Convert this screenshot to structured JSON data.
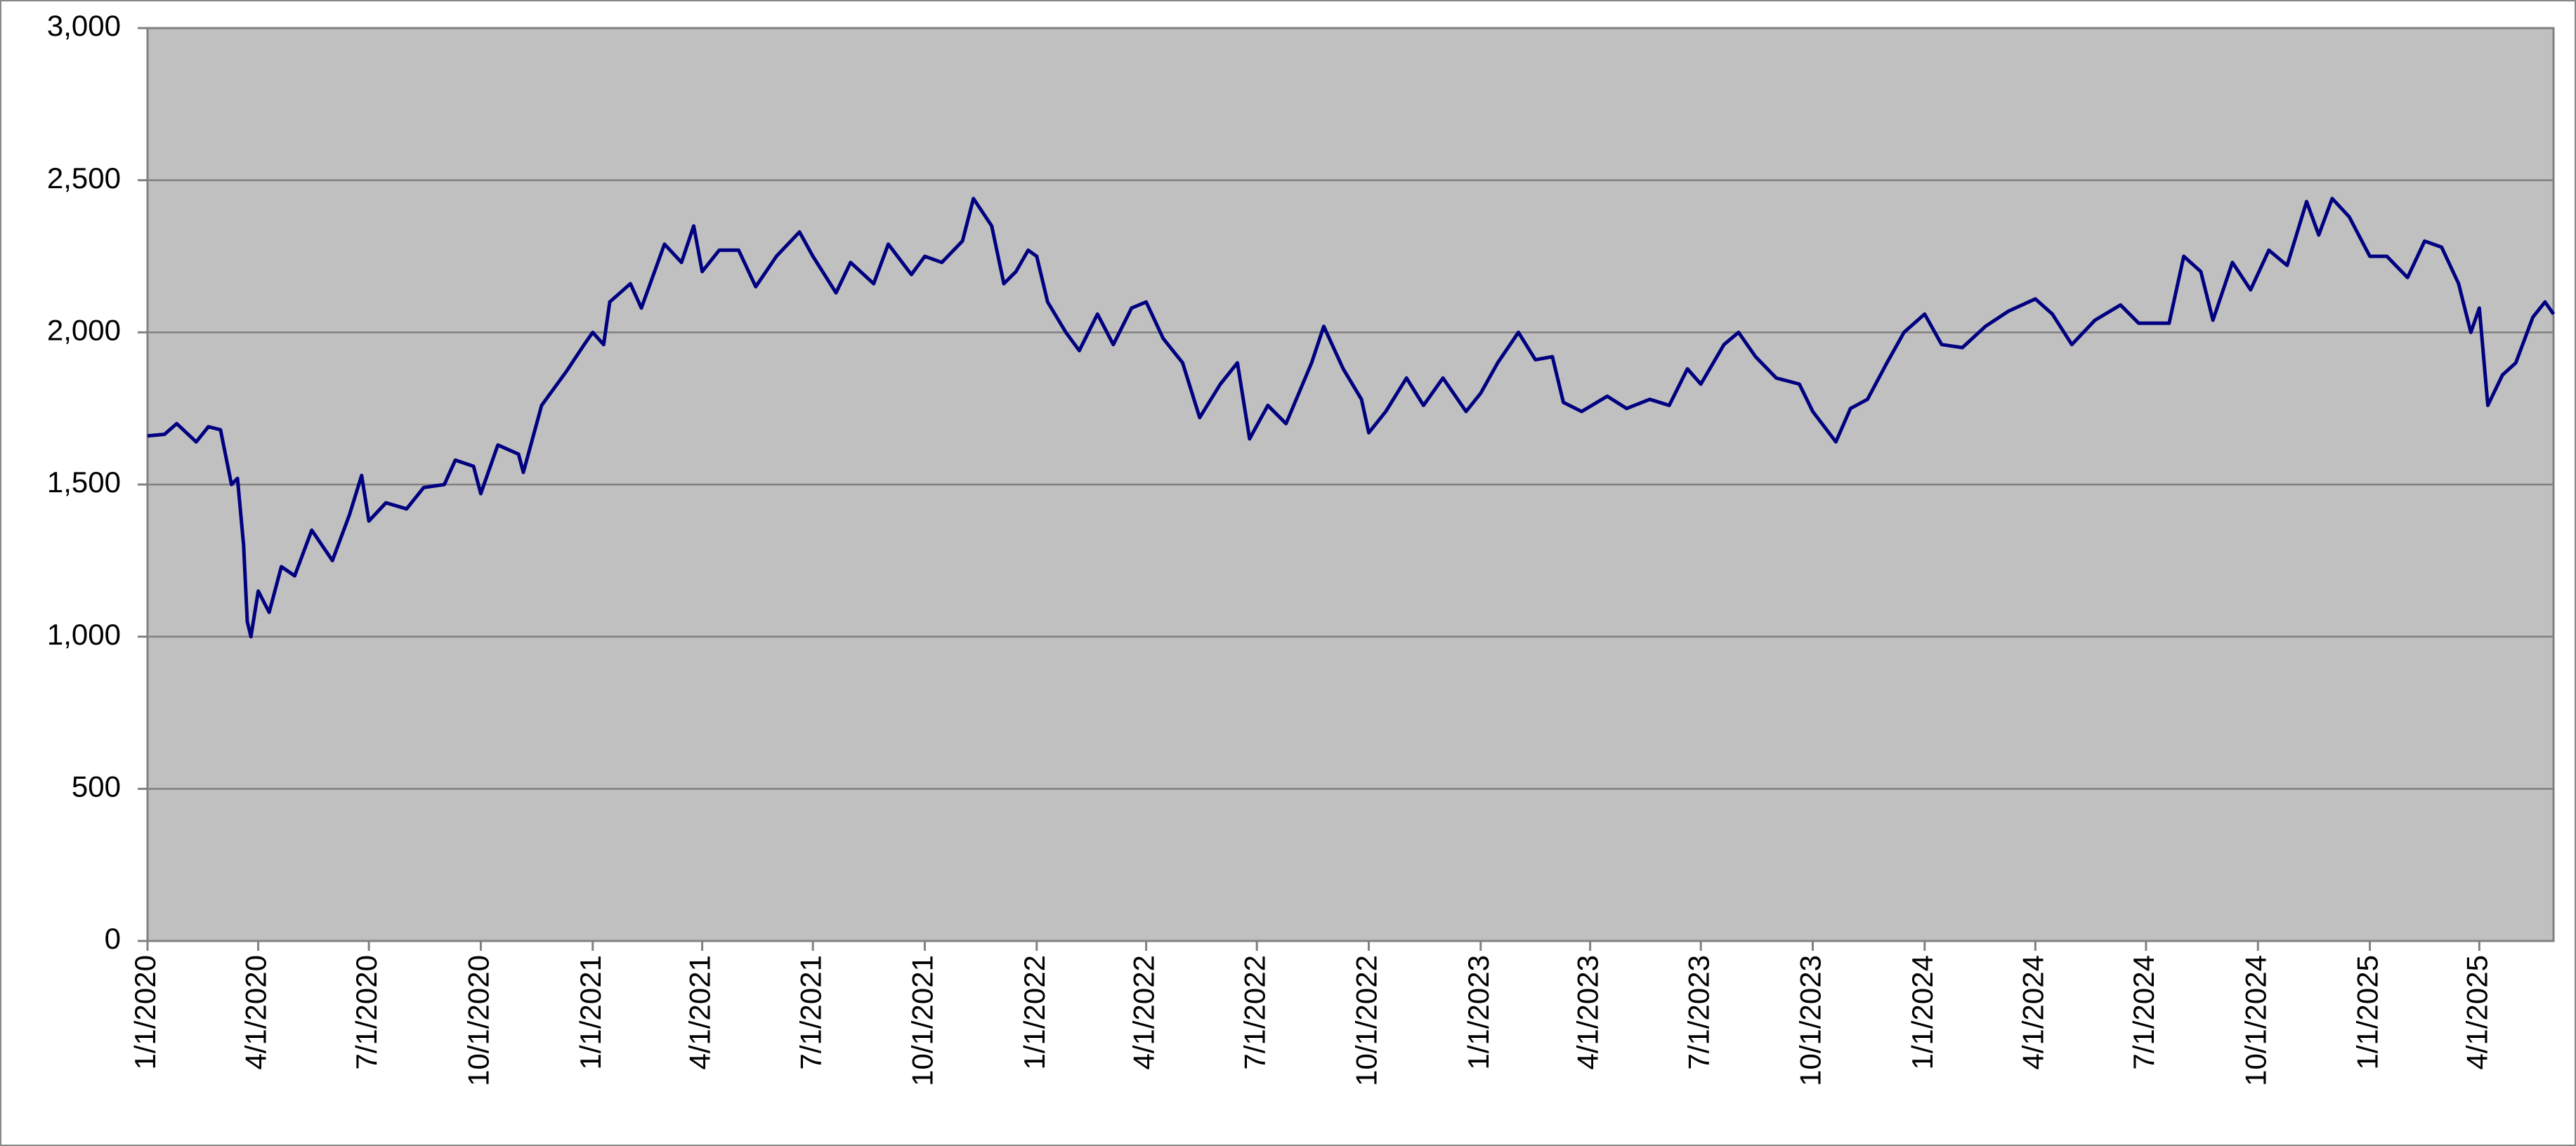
{
  "chart_data": {
    "type": "line",
    "color": "#000080",
    "grid": true,
    "xlim": [
      "2020-01-01",
      "2025-06-01"
    ],
    "xticks": [
      {
        "value": "2020-01-01",
        "label": "1/1/2020"
      },
      {
        "value": "2020-04-01",
        "label": "4/1/2020"
      },
      {
        "value": "2020-07-01",
        "label": "7/1/2020"
      },
      {
        "value": "2020-10-01",
        "label": "10/1/2020"
      },
      {
        "value": "2021-01-01",
        "label": "1/1/2021"
      },
      {
        "value": "2021-04-01",
        "label": "4/1/2021"
      },
      {
        "value": "2021-07-01",
        "label": "7/1/2021"
      },
      {
        "value": "2021-10-01",
        "label": "10/1/2021"
      },
      {
        "value": "2022-01-01",
        "label": "1/1/2022"
      },
      {
        "value": "2022-04-01",
        "label": "4/1/2022"
      },
      {
        "value": "2022-07-01",
        "label": "7/1/2022"
      },
      {
        "value": "2022-10-01",
        "label": "10/1/2022"
      },
      {
        "value": "2023-01-01",
        "label": "1/1/2023"
      },
      {
        "value": "2023-04-01",
        "label": "4/1/2023"
      },
      {
        "value": "2023-07-01",
        "label": "7/1/2023"
      },
      {
        "value": "2023-10-01",
        "label": "10/1/2023"
      },
      {
        "value": "2024-01-01",
        "label": "1/1/2024"
      },
      {
        "value": "2024-04-01",
        "label": "4/1/2024"
      },
      {
        "value": "2024-07-01",
        "label": "7/1/2024"
      },
      {
        "value": "2024-10-01",
        "label": "10/1/2024"
      },
      {
        "value": "2025-01-01",
        "label": "1/1/2025"
      },
      {
        "value": "2025-04-01",
        "label": "4/1/2025"
      }
    ],
    "ylim": [
      0,
      3000
    ],
    "yticks": [
      0,
      500,
      {
        "value": 1000,
        "label": "1,000"
      },
      {
        "value": 1500,
        "label": "1,500"
      },
      {
        "value": 2000,
        "label": "2,000"
      },
      {
        "value": 2500,
        "label": "2,500"
      },
      {
        "value": 3000,
        "label": "3,000"
      }
    ],
    "x": [
      "2020-01-01",
      "2020-01-15",
      "2020-01-25",
      "2020-02-10",
      "2020-02-20",
      "2020-03-01",
      "2020-03-10",
      "2020-03-15",
      "2020-03-20",
      "2020-03-23",
      "2020-03-26",
      "2020-04-01",
      "2020-04-10",
      "2020-04-20",
      "2020-05-01",
      "2020-05-15",
      "2020-06-01",
      "2020-06-15",
      "2020-06-25",
      "2020-07-01",
      "2020-07-15",
      "2020-08-01",
      "2020-08-15",
      "2020-09-01",
      "2020-09-10",
      "2020-09-25",
      "2020-10-01",
      "2020-10-15",
      "2020-11-01",
      "2020-11-05",
      "2020-11-20",
      "2020-12-10",
      "2020-12-25",
      "2021-01-01",
      "2021-01-10",
      "2021-01-15",
      "2021-02-01",
      "2021-02-10",
      "2021-03-01",
      "2021-03-15",
      "2021-03-25",
      "2021-04-01",
      "2021-04-15",
      "2021-05-01",
      "2021-05-15",
      "2021-06-01",
      "2021-06-20",
      "2021-07-01",
      "2021-07-20",
      "2021-08-01",
      "2021-08-20",
      "2021-09-01",
      "2021-09-20",
      "2021-10-01",
      "2021-10-15",
      "2021-11-01",
      "2021-11-10",
      "2021-11-25",
      "2021-12-05",
      "2021-12-15",
      "2021-12-25",
      "2022-01-01",
      "2022-01-10",
      "2022-01-25",
      "2022-02-05",
      "2022-02-20",
      "2022-03-05",
      "2022-03-20",
      "2022-04-01",
      "2022-04-15",
      "2022-05-01",
      "2022-05-15",
      "2022-06-01",
      "2022-06-15",
      "2022-06-25",
      "2022-07-10",
      "2022-07-25",
      "2022-08-15",
      "2022-08-25",
      "2022-09-10",
      "2022-09-25",
      "2022-10-01",
      "2022-10-15",
      "2022-11-01",
      "2022-11-15",
      "2022-12-01",
      "2022-12-20",
      "2023-01-01",
      "2023-01-15",
      "2023-02-01",
      "2023-02-15",
      "2023-03-01",
      "2023-03-10",
      "2023-03-25",
      "2023-04-15",
      "2023-05-01",
      "2023-05-20",
      "2023-06-05",
      "2023-06-20",
      "2023-07-01",
      "2023-07-20",
      "2023-08-01",
      "2023-08-15",
      "2023-09-01",
      "2023-09-20",
      "2023-10-01",
      "2023-10-20",
      "2023-11-01",
      "2023-11-15",
      "2023-12-01",
      "2023-12-15",
      "2024-01-01",
      "2024-01-15",
      "2024-02-01",
      "2024-02-20",
      "2024-03-10",
      "2024-04-01",
      "2024-04-15",
      "2024-05-01",
      "2024-05-20",
      "2024-06-10",
      "2024-06-25",
      "2024-07-20",
      "2024-08-01",
      "2024-08-15",
      "2024-08-25",
      "2024-09-10",
      "2024-09-25",
      "2024-10-10",
      "2024-10-25",
      "2024-11-10",
      "2024-11-20",
      "2024-12-01",
      "2024-12-15",
      "2025-01-01",
      "2025-01-15",
      "2025-02-01",
      "2025-02-15",
      "2025-03-01",
      "2025-03-15",
      "2025-03-25",
      "2025-04-01",
      "2025-04-08",
      "2025-04-20",
      "2025-05-01",
      "2025-05-15",
      "2025-05-25",
      "2025-06-01"
    ],
    "values": [
      1660,
      1665,
      1700,
      1640,
      1690,
      1680,
      1500,
      1520,
      1300,
      1050,
      1000,
      1150,
      1080,
      1230,
      1200,
      1350,
      1250,
      1400,
      1530,
      1380,
      1440,
      1420,
      1490,
      1500,
      1580,
      1560,
      1470,
      1630,
      1600,
      1540,
      1760,
      1870,
      1960,
      2000,
      1960,
      2100,
      2160,
      2080,
      2290,
      2230,
      2350,
      2200,
      2270,
      2270,
      2150,
      2250,
      2330,
      2250,
      2130,
      2230,
      2160,
      2290,
      2190,
      2250,
      2230,
      2300,
      2440,
      2350,
      2160,
      2200,
      2270,
      2250,
      2100,
      2000,
      1940,
      2060,
      1960,
      2080,
      2100,
      1980,
      1900,
      1720,
      1830,
      1900,
      1650,
      1760,
      1700,
      1900,
      2020,
      1880,
      1780,
      1670,
      1740,
      1850,
      1760,
      1850,
      1740,
      1800,
      1900,
      2000,
      1910,
      1920,
      1770,
      1740,
      1790,
      1750,
      1780,
      1760,
      1880,
      1830,
      1960,
      2000,
      1920,
      1850,
      1830,
      1740,
      1640,
      1750,
      1780,
      1900,
      2000,
      2060,
      1960,
      1950,
      2020,
      2070,
      2110,
      2060,
      1960,
      2040,
      2090,
      2030,
      2030,
      2250,
      2200,
      2040,
      2230,
      2140,
      2270,
      2220,
      2430,
      2320,
      2440,
      2380,
      2250,
      2250,
      2180,
      2300,
      2280,
      2160,
      2000,
      2080,
      1760,
      1860,
      1900,
      2050,
      2100,
      2060
    ]
  }
}
